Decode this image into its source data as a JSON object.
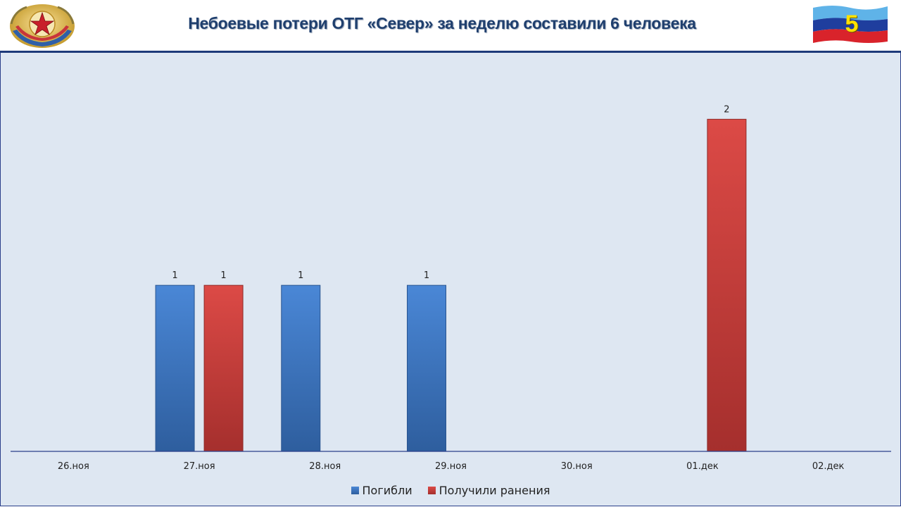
{
  "header": {
    "title": "Небоевые потери ОТГ «Север» за неделю составили 6 человека",
    "page_number": "5",
    "emblem_icon": "lpr-coat-of-arms-icon",
    "flag_icon": "lpr-flag-icon"
  },
  "colors": {
    "series_blue": "#3a74c2",
    "series_red": "#c8403d",
    "plot_background": "#dee7f2",
    "title_color": "#1f3f6e",
    "axis_line": "#2a3f8a"
  },
  "chart_data": {
    "type": "bar",
    "title": "",
    "xlabel": "",
    "ylabel": "",
    "categories": [
      "26.ноя",
      "27.ноя",
      "28.ноя",
      "29.ноя",
      "30.ноя",
      "01.дек",
      "02.дек"
    ],
    "series": [
      {
        "name": "Погибли",
        "values": [
          0,
          1,
          1,
          1,
          0,
          0,
          0
        ]
      },
      {
        "name": "Получили ранения",
        "values": [
          0,
          1,
          0,
          0,
          0,
          2,
          0
        ]
      }
    ],
    "ylim": [
      0,
      2.4
    ],
    "grid": false,
    "legend_position": "bottom"
  }
}
